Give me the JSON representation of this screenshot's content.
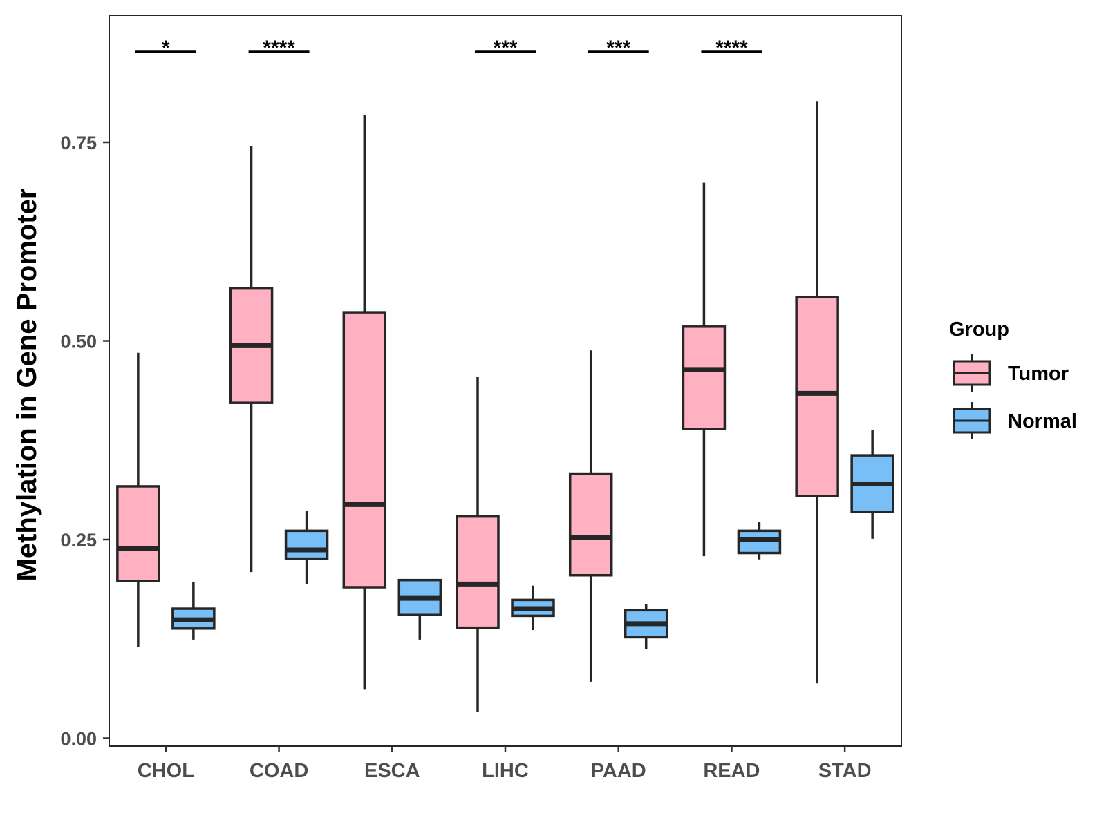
{
  "chart_data": {
    "type": "boxplot",
    "title": "",
    "xlabel": "",
    "ylabel": "Methylation in Gene Promoter",
    "ylim": [
      -0.01,
      0.91
    ],
    "yticks": [
      0.0,
      0.25,
      0.5,
      0.75
    ],
    "ytick_labels": [
      "0.00",
      "0.25",
      "0.50",
      "0.75"
    ],
    "categories": [
      "CHOL",
      "COAD",
      "ESCA",
      "LIHC",
      "PAAD",
      "READ",
      "STAD"
    ],
    "series": [
      {
        "name": "Tumor",
        "color": "#ffb0c1",
        "boxes": [
          {
            "whisker_low": 0.115,
            "q1": 0.198,
            "median": 0.239,
            "q3": 0.317,
            "whisker_high": 0.485
          },
          {
            "whisker_low": 0.209,
            "q1": 0.422,
            "median": 0.494,
            "q3": 0.566,
            "whisker_high": 0.745
          },
          {
            "whisker_low": 0.061,
            "q1": 0.19,
            "median": 0.294,
            "q3": 0.536,
            "whisker_high": 0.784
          },
          {
            "whisker_low": 0.033,
            "q1": 0.139,
            "median": 0.194,
            "q3": 0.279,
            "whisker_high": 0.455
          },
          {
            "whisker_low": 0.071,
            "q1": 0.205,
            "median": 0.253,
            "q3": 0.333,
            "whisker_high": 0.488
          },
          {
            "whisker_low": 0.229,
            "q1": 0.389,
            "median": 0.464,
            "q3": 0.518,
            "whisker_high": 0.699
          },
          {
            "whisker_low": 0.069,
            "q1": 0.305,
            "median": 0.434,
            "q3": 0.555,
            "whisker_high": 0.802
          }
        ]
      },
      {
        "name": "Normal",
        "color": "#78bff7",
        "boxes": [
          {
            "whisker_low": 0.124,
            "q1": 0.138,
            "median": 0.149,
            "q3": 0.163,
            "whisker_high": 0.197
          },
          {
            "whisker_low": 0.194,
            "q1": 0.226,
            "median": 0.237,
            "q3": 0.261,
            "whisker_high": 0.286
          },
          {
            "whisker_low": 0.124,
            "q1": 0.155,
            "median": 0.176,
            "q3": 0.199,
            "whisker_high": 0.2
          },
          {
            "whisker_low": 0.136,
            "q1": 0.154,
            "median": 0.163,
            "q3": 0.174,
            "whisker_high": 0.192
          },
          {
            "whisker_low": 0.112,
            "q1": 0.127,
            "median": 0.144,
            "q3": 0.161,
            "whisker_high": 0.169
          },
          {
            "whisker_low": 0.225,
            "q1": 0.233,
            "median": 0.25,
            "q3": 0.261,
            "whisker_high": 0.272
          },
          {
            "whisker_low": 0.251,
            "q1": 0.285,
            "median": 0.32,
            "q3": 0.356,
            "whisker_high": 0.388
          }
        ]
      }
    ],
    "significance": [
      {
        "category": "CHOL",
        "label": "*"
      },
      {
        "category": "COAD",
        "label": "****"
      },
      {
        "category": "LIHC",
        "label": "***"
      },
      {
        "category": "PAAD",
        "label": "***"
      },
      {
        "category": "READ",
        "label": "****"
      }
    ],
    "legend": {
      "title": "Group",
      "position": "right",
      "entries": [
        "Tumor",
        "Normal"
      ]
    }
  }
}
